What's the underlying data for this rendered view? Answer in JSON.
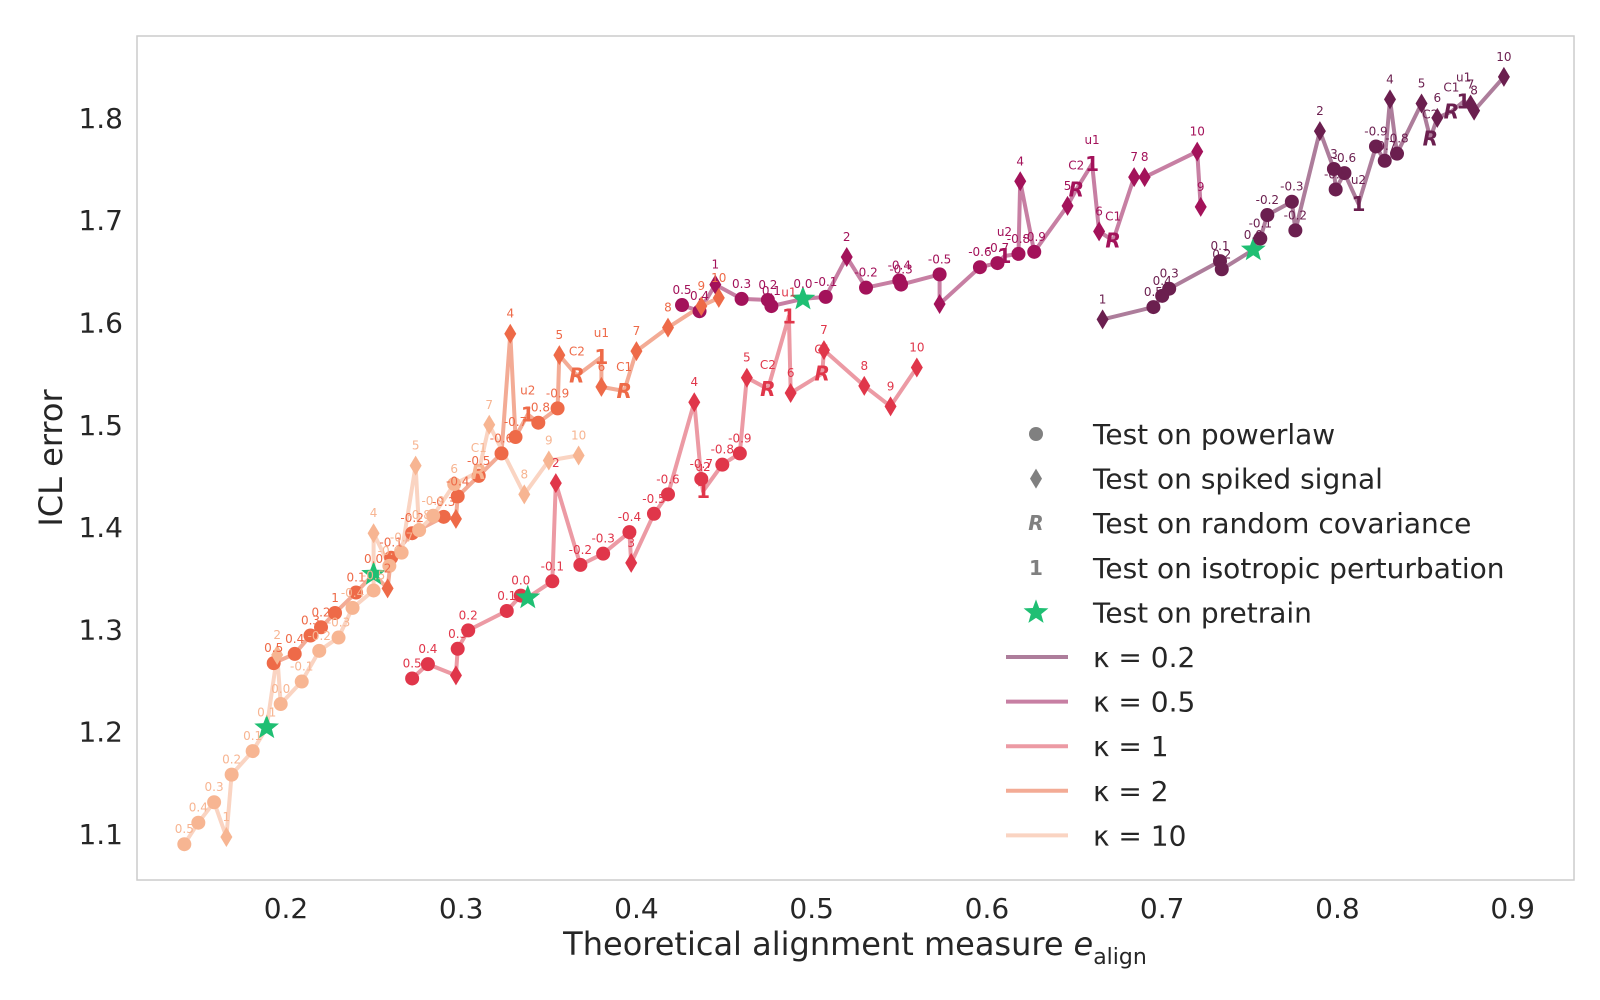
{
  "chart_data": {
    "type": "line",
    "xlabel": "Theoretical alignment measure",
    "xlabel_math": "e",
    "xlabel_sub": "align",
    "ylabel": "ICL error",
    "xlim": [
      0.115,
      0.935
    ],
    "ylim": [
      1.055,
      1.88
    ],
    "xticks": [
      0.2,
      0.3,
      0.4,
      0.5,
      0.6,
      0.7,
      0.8,
      0.9
    ],
    "yticks": [
      1.1,
      1.2,
      1.3,
      1.4,
      1.5,
      1.6,
      1.7,
      1.8
    ],
    "grid": false,
    "legend_placement": "lower-right",
    "markers": [
      {
        "shape": "circle",
        "label": "Test on powerlaw",
        "color": "#808080"
      },
      {
        "shape": "diamond",
        "label": "Test on spiked signal",
        "color": "#808080"
      },
      {
        "shape": "R",
        "label": "Test on random covariance",
        "color": "#808080"
      },
      {
        "shape": "1",
        "label": "Test on isotropic perturbation",
        "color": "#808080"
      },
      {
        "shape": "star",
        "label": "Test on pretrain",
        "color": "#1fbf73"
      }
    ],
    "series": [
      {
        "name": "κ =  0.2",
        "color": "#6b1f4f",
        "line_color": "#ad7d9b",
        "points": [
          {
            "x": 0.666,
            "y": 1.603,
            "m": "d",
            "l": "1"
          },
          {
            "x": 0.695,
            "y": 1.615,
            "m": "o",
            "l": "0.5"
          },
          {
            "x": 0.7,
            "y": 1.626,
            "m": "o",
            "l": "0.4"
          },
          {
            "x": 0.704,
            "y": 1.633,
            "m": "o",
            "l": "0.3"
          },
          {
            "x": 0.733,
            "y": 1.66,
            "m": "o",
            "l": "0.1"
          },
          {
            "x": 0.734,
            "y": 1.652,
            "m": "o",
            "l": "0.2"
          },
          {
            "x": 0.752,
            "y": 1.671,
            "m": "star",
            "l": "0.0"
          },
          {
            "x": 0.756,
            "y": 1.682,
            "m": "o",
            "l": "-0.1"
          },
          {
            "x": 0.76,
            "y": 1.705,
            "m": "o",
            "l": "-0.2"
          },
          {
            "x": 0.774,
            "y": 1.718,
            "m": "o",
            "l": "-0.3"
          },
          {
            "x": 0.776,
            "y": 1.69,
            "m": "o",
            "l": "-0.2"
          },
          {
            "x": 0.79,
            "y": 1.787,
            "m": "d",
            "l": "2"
          },
          {
            "x": 0.798,
            "y": 1.75,
            "m": "o",
            "l": "3"
          },
          {
            "x": 0.799,
            "y": 1.73,
            "m": "o",
            "l": "-0.5"
          },
          {
            "x": 0.804,
            "y": 1.746,
            "m": "o",
            "l": "-0.6"
          },
          {
            "x": 0.812,
            "y": 1.716,
            "m": "1",
            "l": "u2"
          },
          {
            "x": 0.822,
            "y": 1.772,
            "m": "o",
            "l": "-0.9"
          },
          {
            "x": 0.827,
            "y": 1.758,
            "m": "o",
            "l": "-0.7"
          },
          {
            "x": 0.83,
            "y": 1.818,
            "m": "d",
            "l": "4"
          },
          {
            "x": 0.834,
            "y": 1.765,
            "m": "o",
            "l": "-0.8"
          },
          {
            "x": 0.848,
            "y": 1.814,
            "m": "d",
            "l": "5"
          },
          {
            "x": 0.853,
            "y": 1.78,
            "m": "R",
            "l": "C2"
          },
          {
            "x": 0.857,
            "y": 1.8,
            "m": "d",
            "l": "6"
          },
          {
            "x": 0.865,
            "y": 1.806,
            "m": "R",
            "l": "C1"
          },
          {
            "x": 0.872,
            "y": 1.816,
            "m": "1",
            "l": "u1"
          },
          {
            "x": 0.876,
            "y": 1.813,
            "m": "d",
            "l": "7"
          },
          {
            "x": 0.878,
            "y": 1.807,
            "m": "d",
            "l": "8"
          },
          {
            "x": 0.895,
            "y": 1.84,
            "m": "d",
            "l": "10"
          }
        ]
      },
      {
        "name": "κ =  0.5",
        "color": "#a3125a",
        "line_color": "#c77fa3",
        "points": [
          {
            "x": 0.426,
            "y": 1.617,
            "m": "o",
            "l": "0.5"
          },
          {
            "x": 0.436,
            "y": 1.611,
            "m": "o",
            "l": "0.4"
          },
          {
            "x": 0.445,
            "y": 1.637,
            "m": "d",
            "l": "1"
          },
          {
            "x": 0.46,
            "y": 1.623,
            "m": "o",
            "l": "0.3"
          },
          {
            "x": 0.475,
            "y": 1.622,
            "m": "o",
            "l": "0.2"
          },
          {
            "x": 0.477,
            "y": 1.616,
            "m": "o",
            "l": "0.1"
          },
          {
            "x": 0.495,
            "y": 1.623,
            "m": "star",
            "l": "0.0"
          },
          {
            "x": 0.508,
            "y": 1.625,
            "m": "o",
            "l": "-0.1"
          },
          {
            "x": 0.52,
            "y": 1.664,
            "m": "d",
            "l": "2"
          },
          {
            "x": 0.531,
            "y": 1.634,
            "m": "o",
            "l": "-0.2"
          },
          {
            "x": 0.55,
            "y": 1.641,
            "m": "o",
            "l": "-0.4"
          },
          {
            "x": 0.551,
            "y": 1.637,
            "m": "o",
            "l": "-0.3"
          },
          {
            "x": 0.573,
            "y": 1.647,
            "m": "o",
            "l": "-0.5"
          },
          {
            "x": 0.573,
            "y": 1.618,
            "m": "d",
            "l": ""
          },
          {
            "x": 0.596,
            "y": 1.654,
            "m": "o",
            "l": "-0.6"
          },
          {
            "x": 0.606,
            "y": 1.658,
            "m": "o",
            "l": "-0.7"
          },
          {
            "x": 0.61,
            "y": 1.665,
            "m": "1",
            "l": "u2"
          },
          {
            "x": 0.618,
            "y": 1.667,
            "m": "o",
            "l": "-0.8"
          },
          {
            "x": 0.619,
            "y": 1.738,
            "m": "d",
            "l": "4"
          },
          {
            "x": 0.627,
            "y": 1.669,
            "m": "o",
            "l": "-0.9"
          },
          {
            "x": 0.646,
            "y": 1.714,
            "m": "d",
            "l": "5"
          },
          {
            "x": 0.651,
            "y": 1.73,
            "m": "R",
            "l": "C2"
          },
          {
            "x": 0.66,
            "y": 1.755,
            "m": "1",
            "l": "u1"
          },
          {
            "x": 0.664,
            "y": 1.689,
            "m": "d",
            "l": "6"
          },
          {
            "x": 0.672,
            "y": 1.68,
            "m": "R",
            "l": "C1"
          },
          {
            "x": 0.684,
            "y": 1.742,
            "m": "d",
            "l": "7"
          },
          {
            "x": 0.69,
            "y": 1.742,
            "m": "d",
            "l": "8"
          },
          {
            "x": 0.72,
            "y": 1.767,
            "m": "d",
            "l": "10"
          },
          {
            "x": 0.722,
            "y": 1.713,
            "m": "d",
            "l": "9"
          }
        ]
      },
      {
        "name": "κ =  1",
        "color": "#e0364a",
        "line_color": "#ec9aa4",
        "points": [
          {
            "x": 0.272,
            "y": 1.252,
            "m": "o",
            "l": "0.5"
          },
          {
            "x": 0.281,
            "y": 1.266,
            "m": "o",
            "l": "0.4"
          },
          {
            "x": 0.297,
            "y": 1.255,
            "m": "d",
            "l": ""
          },
          {
            "x": 0.298,
            "y": 1.281,
            "m": "o",
            "l": "0.3"
          },
          {
            "x": 0.304,
            "y": 1.299,
            "m": "o",
            "l": "0.2"
          },
          {
            "x": 0.326,
            "y": 1.318,
            "m": "o",
            "l": "0.1"
          },
          {
            "x": 0.334,
            "y": 1.333,
            "m": "o",
            "l": "0.0"
          },
          {
            "x": 0.338,
            "y": 1.331,
            "m": "star",
            "l": ""
          },
          {
            "x": 0.352,
            "y": 1.347,
            "m": "o",
            "l": "-0.1"
          },
          {
            "x": 0.354,
            "y": 1.443,
            "m": "d",
            "l": "2"
          },
          {
            "x": 0.368,
            "y": 1.363,
            "m": "o",
            "l": "-0.2"
          },
          {
            "x": 0.381,
            "y": 1.374,
            "m": "o",
            "l": "-0.3"
          },
          {
            "x": 0.396,
            "y": 1.395,
            "m": "o",
            "l": "-0.4"
          },
          {
            "x": 0.397,
            "y": 1.365,
            "m": "d",
            "l": "3"
          },
          {
            "x": 0.41,
            "y": 1.413,
            "m": "o",
            "l": "-0.5"
          },
          {
            "x": 0.418,
            "y": 1.432,
            "m": "o",
            "l": "-0.6"
          },
          {
            "x": 0.433,
            "y": 1.522,
            "m": "d",
            "l": "4"
          },
          {
            "x": 0.437,
            "y": 1.447,
            "m": "o",
            "l": "-0.7"
          },
          {
            "x": 0.438,
            "y": 1.435,
            "m": "1",
            "l": "u2"
          },
          {
            "x": 0.449,
            "y": 1.461,
            "m": "o",
            "l": "-0.8"
          },
          {
            "x": 0.459,
            "y": 1.472,
            "m": "o",
            "l": "-0.9"
          },
          {
            "x": 0.463,
            "y": 1.546,
            "m": "d",
            "l": "5"
          },
          {
            "x": 0.475,
            "y": 1.535,
            "m": "R",
            "l": "C2"
          },
          {
            "x": 0.487,
            "y": 1.606,
            "m": "1",
            "l": "u1"
          },
          {
            "x": 0.488,
            "y": 1.531,
            "m": "d",
            "l": "6"
          },
          {
            "x": 0.506,
            "y": 1.55,
            "m": "R",
            "l": "C1"
          },
          {
            "x": 0.507,
            "y": 1.573,
            "m": "d",
            "l": "7"
          },
          {
            "x": 0.53,
            "y": 1.538,
            "m": "d",
            "l": "8"
          },
          {
            "x": 0.545,
            "y": 1.518,
            "m": "d",
            "l": "9"
          },
          {
            "x": 0.56,
            "y": 1.556,
            "m": "d",
            "l": "10"
          }
        ]
      },
      {
        "name": "κ =  2",
        "color": "#ee6a48",
        "line_color": "#f3ab95",
        "points": [
          {
            "x": 0.193,
            "y": 1.267,
            "m": "o",
            "l": "0.5"
          },
          {
            "x": 0.205,
            "y": 1.276,
            "m": "o",
            "l": "0.4"
          },
          {
            "x": 0.214,
            "y": 1.294,
            "m": "o",
            "l": "0.3"
          },
          {
            "x": 0.22,
            "y": 1.302,
            "m": "o",
            "l": "0.2"
          },
          {
            "x": 0.228,
            "y": 1.316,
            "m": "o",
            "l": "1"
          },
          {
            "x": 0.24,
            "y": 1.336,
            "m": "o",
            "l": "0.1"
          },
          {
            "x": 0.25,
            "y": 1.354,
            "m": "star",
            "l": "0.0"
          },
          {
            "x": 0.258,
            "y": 1.34,
            "m": "d",
            "l": "2"
          },
          {
            "x": 0.26,
            "y": 1.37,
            "m": "o",
            "l": "-0.1"
          },
          {
            "x": 0.272,
            "y": 1.394,
            "m": "o",
            "l": "-0.2"
          },
          {
            "x": 0.29,
            "y": 1.41,
            "m": "o",
            "l": "-0.3"
          },
          {
            "x": 0.297,
            "y": 1.408,
            "m": "d",
            "l": "3"
          },
          {
            "x": 0.298,
            "y": 1.43,
            "m": "o",
            "l": "-0.4"
          },
          {
            "x": 0.31,
            "y": 1.45,
            "m": "o",
            "l": "-0.5"
          },
          {
            "x": 0.323,
            "y": 1.472,
            "m": "o",
            "l": "-0.6"
          },
          {
            "x": 0.328,
            "y": 1.589,
            "m": "d",
            "l": "4"
          },
          {
            "x": 0.331,
            "y": 1.488,
            "m": "o",
            "l": "-0.7"
          },
          {
            "x": 0.338,
            "y": 1.51,
            "m": "1",
            "l": "u2"
          },
          {
            "x": 0.344,
            "y": 1.502,
            "m": "o",
            "l": "-0.8"
          },
          {
            "x": 0.355,
            "y": 1.516,
            "m": "o",
            "l": "-0.9"
          },
          {
            "x": 0.356,
            "y": 1.568,
            "m": "d",
            "l": "5"
          },
          {
            "x": 0.366,
            "y": 1.548,
            "m": "R",
            "l": "C2"
          },
          {
            "x": 0.38,
            "y": 1.566,
            "m": "1",
            "l": "u1"
          },
          {
            "x": 0.38,
            "y": 1.537,
            "m": "d",
            "l": "6"
          },
          {
            "x": 0.393,
            "y": 1.533,
            "m": "R",
            "l": "C1"
          },
          {
            "x": 0.4,
            "y": 1.572,
            "m": "d",
            "l": "7"
          },
          {
            "x": 0.418,
            "y": 1.595,
            "m": "d",
            "l": "8"
          },
          {
            "x": 0.437,
            "y": 1.616,
            "m": "d",
            "l": "9"
          },
          {
            "x": 0.447,
            "y": 1.624,
            "m": "d",
            "l": "10"
          }
        ]
      },
      {
        "name": "κ =  10",
        "color": "#f7b592",
        "line_color": "#fad4c2",
        "points": [
          {
            "x": 0.142,
            "y": 1.09,
            "m": "o",
            "l": "0.5"
          },
          {
            "x": 0.15,
            "y": 1.111,
            "m": "o",
            "l": "0.4"
          },
          {
            "x": 0.159,
            "y": 1.131,
            "m": "o",
            "l": "0.3"
          },
          {
            "x": 0.166,
            "y": 1.097,
            "m": "d",
            "l": "1"
          },
          {
            "x": 0.169,
            "y": 1.158,
            "m": "o",
            "l": "0.2"
          },
          {
            "x": 0.181,
            "y": 1.181,
            "m": "o",
            "l": "0.1"
          },
          {
            "x": 0.189,
            "y": 1.204,
            "m": "star",
            "l": "0.1"
          },
          {
            "x": 0.195,
            "y": 1.275,
            "m": "d",
            "l": "2"
          },
          {
            "x": 0.197,
            "y": 1.227,
            "m": "o",
            "l": "0.0"
          },
          {
            "x": 0.209,
            "y": 1.249,
            "m": "o",
            "l": "-0.1"
          },
          {
            "x": 0.219,
            "y": 1.279,
            "m": "o",
            "l": "-0.2"
          },
          {
            "x": 0.23,
            "y": 1.292,
            "m": "o",
            "l": "-0.3"
          },
          {
            "x": 0.238,
            "y": 1.321,
            "m": "o",
            "l": "-0.4"
          },
          {
            "x": 0.25,
            "y": 1.338,
            "m": "o",
            "l": "-0.5"
          },
          {
            "x": 0.25,
            "y": 1.394,
            "m": "d",
            "l": "4"
          },
          {
            "x": 0.259,
            "y": 1.362,
            "m": "o",
            "l": "-0.6"
          },
          {
            "x": 0.266,
            "y": 1.375,
            "m": "o",
            "l": "-0.7"
          },
          {
            "x": 0.274,
            "y": 1.46,
            "m": "d",
            "l": "5"
          },
          {
            "x": 0.276,
            "y": 1.397,
            "m": "o",
            "l": "-0.8"
          },
          {
            "x": 0.284,
            "y": 1.411,
            "m": "o",
            "l": "-0.9"
          },
          {
            "x": 0.296,
            "y": 1.442,
            "m": "o",
            "l": "6"
          },
          {
            "x": 0.31,
            "y": 1.454,
            "m": "R",
            "l": "C1"
          },
          {
            "x": 0.316,
            "y": 1.5,
            "m": "d",
            "l": "7"
          },
          {
            "x": 0.336,
            "y": 1.432,
            "m": "d",
            "l": "8"
          },
          {
            "x": 0.35,
            "y": 1.465,
            "m": "d",
            "l": "9"
          },
          {
            "x": 0.367,
            "y": 1.47,
            "m": "d",
            "l": "10"
          }
        ]
      }
    ]
  }
}
